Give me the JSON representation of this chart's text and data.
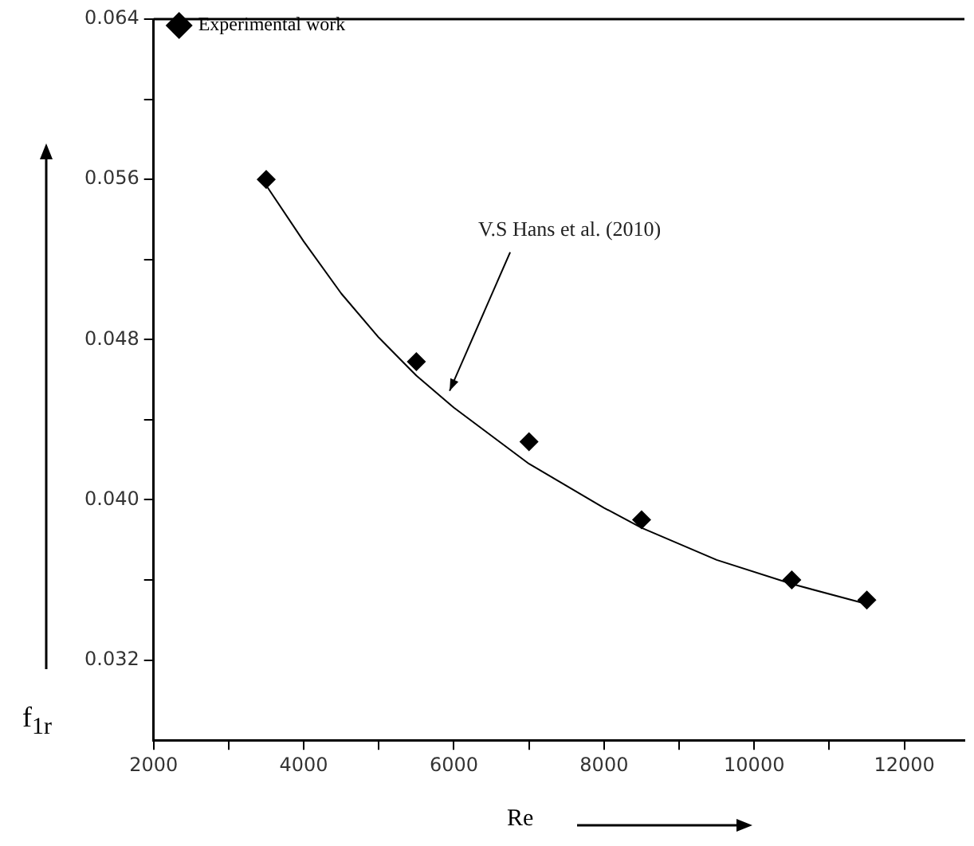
{
  "chart_data": {
    "type": "scatter",
    "xlabel": "Re",
    "ylabel": "f$_{1r}$",
    "legend": "top left",
    "grid": false,
    "marker": "diamond",
    "xlim": [
      2000,
      12800
    ],
    "xticks": [
      2000,
      {
        "value": 3000,
        "label": null
      },
      4000,
      {
        "value": 5000,
        "label": null
      },
      6000,
      {
        "value": 7000,
        "label": null
      },
      8000,
      {
        "value": 9000,
        "label": null
      },
      10000,
      {
        "value": 11000,
        "label": null
      },
      12000
    ],
    "ylim": [
      0.028,
      0.064
    ],
    "yticks": [
      0.032,
      {
        "value": 0.036,
        "label": null
      },
      "0.040",
      {
        "value": 0.044,
        "label": null
      },
      0.048,
      {
        "value": 0.052,
        "label": null
      },
      0.056,
      {
        "value": 0.06,
        "label": null
      },
      0.064
    ],
    "series": [
      {
        "name": "Experimental work",
        "type": "scatter",
        "color": "#000000",
        "x": [
          3500,
          5500,
          7000,
          8500,
          10500,
          11500
        ],
        "values": [
          0.056,
          0.0469,
          0.0429,
          0.039,
          0.036,
          0.035
        ]
      },
      {
        "type": "line",
        "color": "#000000",
        "marker": "none",
        "x": [
          3500,
          4000,
          4500,
          5000,
          5500,
          6000,
          7000,
          8000,
          8500,
          9500,
          10500,
          11500
        ],
        "values": [
          0.0557,
          0.0529,
          0.0503,
          0.0481,
          0.0462,
          0.0446,
          0.0418,
          0.0396,
          0.0386,
          0.037,
          0.0358,
          0.0348
        ]
      }
    ],
    "annotations": [
      {
        "text": "V.S Hans et al. (2010)",
        "x": 5900,
        "y": 0.0452
      }
    ]
  }
}
